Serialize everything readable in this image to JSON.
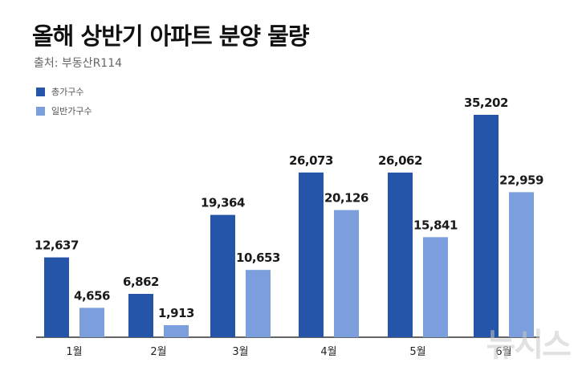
{
  "title": "올해 상반기 아파트 분양 물량",
  "source": "출처: 부동산R114",
  "watermark": "뉴시스",
  "colors": {
    "total": "#2455a8",
    "general": "#7b9fdc"
  },
  "chart_data": {
    "type": "bar",
    "title": "올해 상반기 아파트 분양 물량",
    "categories": [
      "1월",
      "2월",
      "3월",
      "4월",
      "5월",
      "6월"
    ],
    "series": [
      {
        "name": "총가구수",
        "values": [
          12637,
          6862,
          19364,
          26073,
          26062,
          35202
        ],
        "labels": [
          "12,637",
          "6,862",
          "19,364",
          "26,073",
          "26,062",
          "35,202"
        ]
      },
      {
        "name": "일반가구수",
        "values": [
          4656,
          1913,
          10653,
          20126,
          15841,
          22959
        ],
        "labels": [
          "4,656",
          "1,913",
          "10,653",
          "20,126",
          "15,841",
          "22,959"
        ]
      }
    ],
    "ylim": [
      0,
      36000
    ],
    "grid": false,
    "legend": "top-left"
  }
}
